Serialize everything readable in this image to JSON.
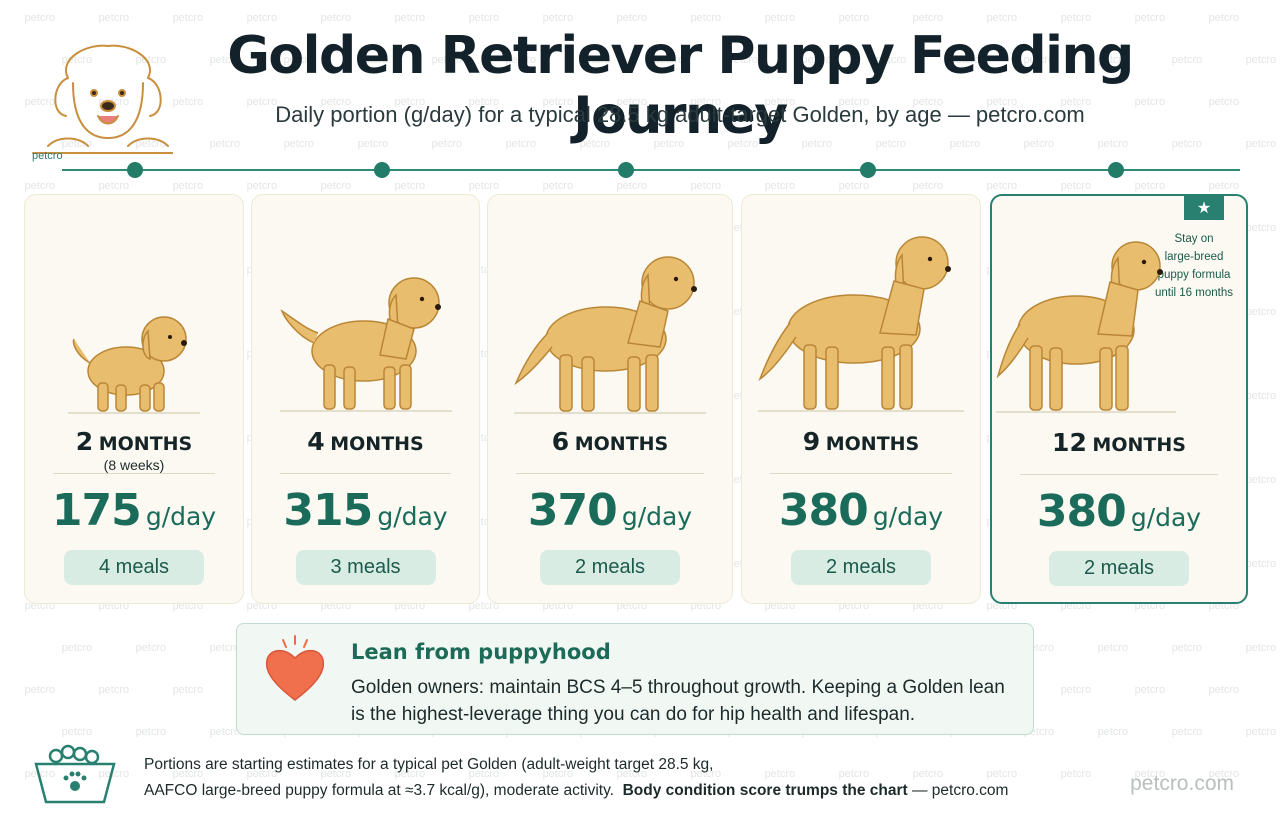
{
  "header": {
    "title": "Golden Retriever Puppy Feeding Journey",
    "subtitle": "Daily portion (g/day) for a typical 28.5 kg adult-target Golden, by age — petcro.com",
    "logo_text": "petcro"
  },
  "stages": [
    {
      "age_num": "2",
      "age_unit": "MONTHS",
      "age_note": "(8 weeks)",
      "portion": "175",
      "portion_unit": "g/day",
      "meals": "4 meals",
      "dog_icon": "puppy-small-icon"
    },
    {
      "age_num": "4",
      "age_unit": "MONTHS",
      "age_note": "",
      "portion": "315",
      "portion_unit": "g/day",
      "meals": "3 meals",
      "dog_icon": "puppy-medium-icon"
    },
    {
      "age_num": "6",
      "age_unit": "MONTHS",
      "age_note": "",
      "portion": "370",
      "portion_unit": "g/day",
      "meals": "2 meals",
      "dog_icon": "dog-juvenile-icon"
    },
    {
      "age_num": "9",
      "age_unit": "MONTHS",
      "age_note": "",
      "portion": "380",
      "portion_unit": "g/day",
      "meals": "2 meals",
      "dog_icon": "dog-adolescent-icon"
    },
    {
      "age_num": "12",
      "age_unit": "MONTHS",
      "age_note": "",
      "portion": "380",
      "portion_unit": "g/day",
      "meals": "2 meals",
      "dog_icon": "dog-adult-icon",
      "highlight": true
    }
  ],
  "highlight_note": {
    "icon": "star-icon",
    "line1": "Stay on",
    "line2": "large-breed",
    "line3": "puppy formula",
    "line4": "until 16 months"
  },
  "lean": {
    "icon": "heart-icon",
    "heading": "Lean from puppyhood",
    "body": "Golden owners: maintain BCS 4–5 throughout growth. Keeping a Golden lean is the highest-leverage thing you can do for hip health and lifespan."
  },
  "footer": {
    "icon": "food-bowl-icon",
    "line1": "Portions are starting estimates for a typical pet Golden (adult-weight target 28.5 kg,",
    "line2": "AAFCO large-breed puppy formula at ≈3.7 kcal/g), moderate activity.",
    "emphasis": "Body condition score trumps the chart",
    "tail": " — petcro.com",
    "brand": "petcro.com"
  },
  "colors": {
    "accent": "#237c68",
    "card_bg": "#fbf9f1",
    "meals_bg": "#d9ece3",
    "dog_fur": "#e8bd6e",
    "heart": "#f06a48"
  }
}
